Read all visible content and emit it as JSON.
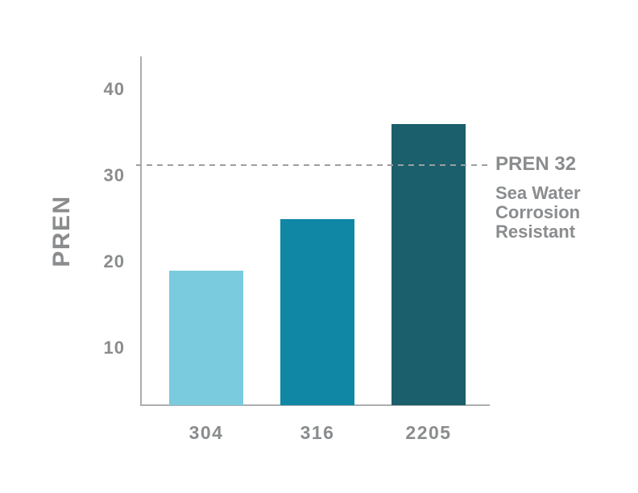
{
  "chart_data": {
    "type": "bar",
    "title": "",
    "xlabel": "",
    "ylabel": "PREN",
    "categories": [
      "304",
      "316",
      "2205"
    ],
    "values": [
      19,
      25,
      36
    ],
    "bar_colors": [
      "#79CBDD",
      "#0F87A5",
      "#1A5F6B"
    ],
    "yticks": [
      10,
      20,
      30,
      40
    ],
    "ylim_approx": [
      3.4,
      43.8
    ],
    "grid": false,
    "legend": false,
    "threshold": {
      "value": 32,
      "label": "PREN 32",
      "description": "Sea Water\nCorrosion\nResistant",
      "line_style": "dashed"
    }
  },
  "colors": {
    "background": "#FFFFFF",
    "text_gray": "#8A8C8E",
    "axis_gray": "#ABADAF",
    "dash_gray": "#9C9EA0"
  }
}
